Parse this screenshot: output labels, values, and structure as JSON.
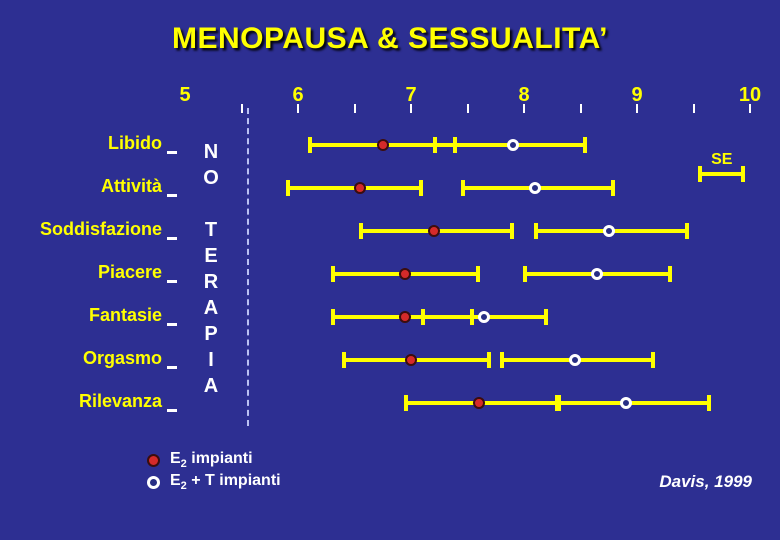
{
  "title": "MENOPAUSA & SESSUALITA’",
  "no_therapy_label": "N\nO\n\nT\nE\nR\nA\nP\nI\nA",
  "se_label": "SE",
  "citation": "Davis, 1999",
  "legend": {
    "items": [
      {
        "base": "E",
        "sub": "2",
        "rest": " impianti"
      },
      {
        "base": "E",
        "sub": "2",
        "rest": " + T impianti"
      }
    ]
  },
  "colors": {
    "background": "#2d2f92",
    "title": "#ffff00",
    "labels": "#ffff00",
    "bars": "#ffff00",
    "filled_marker": "#d42a2a",
    "filled_marker_edge": "#3b0d0d",
    "open_marker_ring": "#ffffff",
    "open_marker_fill": "#272e84",
    "reference_line": "#ccd2ff",
    "tick": "#ffffff",
    "white_text": "#ffffff"
  },
  "chart_data": {
    "type": "scatter",
    "subtype": "horizontal-dot-error-bars",
    "title": "MENOPAUSA & SESSUALITA’",
    "xlim": [
      5,
      10
    ],
    "x_ticks": [
      5,
      6,
      7,
      8,
      9,
      10
    ],
    "minor_tick_step": 0.5,
    "grid": false,
    "reference_line_x": 5.55,
    "no_therapy_zone_label": "NO TERAPIA",
    "categories": [
      "Libido",
      "Attività",
      "Soddisfazione",
      "Piacere",
      "Fantasie",
      "Orgasmo",
      "Rilevanza"
    ],
    "series": [
      {
        "name": "E2 impianti",
        "marker": "filled",
        "values": [
          {
            "mean": 6.75,
            "low": 6.1,
            "high": 7.4
          },
          {
            "mean": 6.55,
            "low": 5.9,
            "high": 7.1
          },
          {
            "mean": 7.2,
            "low": 6.55,
            "high": 7.9
          },
          {
            "mean": 6.95,
            "low": 6.3,
            "high": 7.6
          },
          {
            "mean": 6.95,
            "low": 6.3,
            "high": 7.55
          },
          {
            "mean": 7.0,
            "low": 6.4,
            "high": 7.7
          },
          {
            "mean": 7.6,
            "low": 6.95,
            "high": 8.3
          }
        ]
      },
      {
        "name": "E2 + T impianti",
        "marker": "open",
        "values": [
          {
            "mean": 7.9,
            "low": 7.2,
            "high": 8.55
          },
          {
            "mean": 8.1,
            "low": 7.45,
            "high": 8.8
          },
          {
            "mean": 8.75,
            "low": 8.1,
            "high": 9.45
          },
          {
            "mean": 8.65,
            "low": 8.0,
            "high": 9.3
          },
          {
            "mean": 7.65,
            "low": 7.1,
            "high": 8.2
          },
          {
            "mean": 8.45,
            "low": 7.8,
            "high": 9.15
          },
          {
            "mean": 8.9,
            "low": 8.3,
            "high": 9.65
          }
        ]
      }
    ],
    "se_bar": {
      "low": 9.55,
      "high": 9.95
    }
  }
}
